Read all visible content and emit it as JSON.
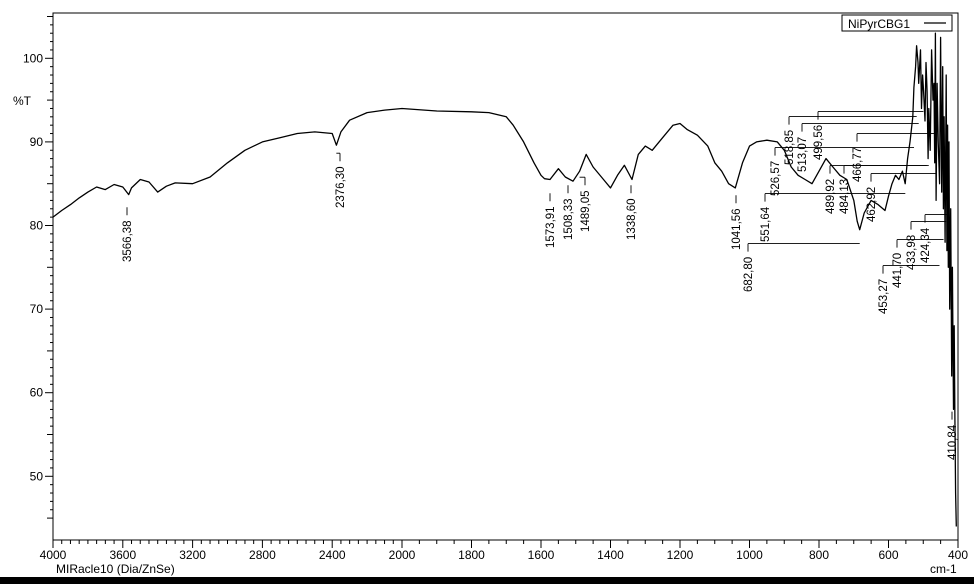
{
  "chart_data": {
    "type": "line",
    "title": "",
    "xlabel": "cm-1",
    "ylabel": "%T",
    "xlim": [
      4000,
      400
    ],
    "ylim": [
      43,
      105
    ],
    "x_ticks": [
      "4000",
      "3600",
      "3200",
      "2800",
      "2400",
      "2000",
      "1800",
      "1600",
      "1400",
      "1200",
      "1000",
      "800",
      "600",
      "400"
    ],
    "y_ticks": [
      "100",
      "90",
      "80",
      "70",
      "60",
      "50"
    ],
    "legend": {
      "label": "NiPyrCBG1",
      "placement": "top-right"
    },
    "footer": "MIRacle10 (Dia/ZnSe)",
    "series": [
      {
        "name": "NiPyrCBG1",
        "x": [
          4000,
          3950,
          3900,
          3850,
          3800,
          3750,
          3700,
          3650,
          3600,
          3566,
          3550,
          3500,
          3450,
          3400,
          3350,
          3300,
          3200,
          3100,
          3000,
          2900,
          2800,
          2700,
          2600,
          2500,
          2400,
          2376,
          2350,
          2300,
          2200,
          2100,
          2000,
          1900,
          1800,
          1750,
          1700,
          1680,
          1650,
          1620,
          1600,
          1590,
          1574,
          1550,
          1530,
          1508,
          1489,
          1470,
          1450,
          1420,
          1400,
          1380,
          1360,
          1338,
          1320,
          1300,
          1280,
          1250,
          1220,
          1200,
          1180,
          1150,
          1120,
          1100,
          1080,
          1060,
          1041,
          1020,
          1000,
          980,
          950,
          920,
          900,
          880,
          860,
          840,
          820,
          800,
          780,
          760,
          740,
          720,
          700,
          690,
          683,
          670,
          650,
          630,
          610,
          600,
          590,
          580,
          570,
          560,
          552,
          545,
          538,
          530,
          527,
          522,
          519,
          515,
          513,
          508,
          505,
          502,
          499,
          495,
          492,
          489,
          486,
          484,
          480,
          476,
          472,
          469,
          467,
          465,
          463,
          460,
          457,
          453,
          450,
          447,
          444,
          442,
          440,
          437,
          434,
          432,
          430,
          428,
          426,
          424,
          421,
          418,
          416,
          413,
          411,
          409,
          407,
          405
        ],
        "y": [
          81.0,
          81.8,
          82.5,
          83.3,
          84.0,
          84.6,
          84.3,
          84.9,
          84.6,
          83.7,
          84.5,
          85.5,
          85.2,
          84.0,
          84.7,
          85.1,
          85.0,
          85.8,
          87.5,
          89.0,
          90.0,
          90.5,
          91.0,
          91.2,
          91.0,
          89.6,
          91.2,
          92.6,
          93.5,
          93.8,
          94.0,
          93.7,
          93.6,
          93.5,
          93.0,
          92.0,
          90.0,
          87.5,
          86.0,
          85.6,
          85.5,
          86.8,
          85.8,
          85.3,
          86.5,
          88.5,
          87.0,
          85.5,
          84.5,
          86.0,
          87.2,
          85.5,
          88.5,
          89.5,
          89.0,
          90.5,
          92.0,
          92.2,
          91.5,
          90.8,
          89.5,
          87.5,
          86.5,
          85.0,
          84.5,
          87.5,
          89.5,
          90.0,
          90.2,
          90.0,
          89.0,
          87.0,
          86.0,
          85.5,
          85.0,
          86.5,
          88.0,
          87.0,
          86.0,
          85.5,
          83.0,
          80.5,
          79.5,
          81.5,
          83.0,
          82.5,
          81.8,
          83.5,
          85.0,
          86.0,
          85.5,
          86.5,
          85.0,
          88.0,
          90.0,
          93.0,
          96.5,
          99.0,
          101.5,
          99.5,
          97.0,
          101.0,
          94.0,
          98.0,
          96.0,
          92.5,
          99.5,
          96.0,
          88.0,
          94.0,
          89.0,
          101.0,
          95.0,
          97.0,
          87.5,
          103.0,
          83.0,
          97.0,
          90.0,
          85.0,
          102.5,
          84.0,
          99.0,
          82.0,
          93.0,
          78.0,
          98.0,
          77.0,
          92.0,
          75.0,
          90.0,
          70.0,
          82.0,
          62.0,
          75.0,
          58.0,
          68.0,
          57.0,
          48.0,
          44.0
        ]
      }
    ],
    "peak_labels": [
      {
        "x": 3566.38,
        "text": "3566,38"
      },
      {
        "x": 2376.3,
        "text": "2376,30"
      },
      {
        "x": 1573.91,
        "text": "1573,91"
      },
      {
        "x": 1508.33,
        "text": "1508,33"
      },
      {
        "x": 1489.05,
        "text": "1489,05"
      },
      {
        "x": 1338.6,
        "text": "1338,60"
      },
      {
        "x": 1041.56,
        "text": "1041,56"
      },
      {
        "x": 682.8,
        "text": "682,80"
      },
      {
        "x": 551.64,
        "text": "551,64"
      },
      {
        "x": 526.57,
        "text": "526,57"
      },
      {
        "x": 518.85,
        "text": "518,85"
      },
      {
        "x": 513.07,
        "text": "513,07"
      },
      {
        "x": 499.56,
        "text": "499,56"
      },
      {
        "x": 489.92,
        "text": "489,92"
      },
      {
        "x": 484.13,
        "text": "484,13"
      },
      {
        "x": 466.77,
        "text": "466,77"
      },
      {
        "x": 462.92,
        "text": "462,92"
      },
      {
        "x": 453.27,
        "text": "453,27"
      },
      {
        "x": 441.7,
        "text": "441,70"
      },
      {
        "x": 433.98,
        "text": "433,98"
      },
      {
        "x": 424.34,
        "text": "424,34"
      },
      {
        "x": 410.84,
        "text": "410,84"
      }
    ],
    "colors": {
      "line": "#000000",
      "axes": "#000000",
      "background": "#ffffff"
    }
  }
}
